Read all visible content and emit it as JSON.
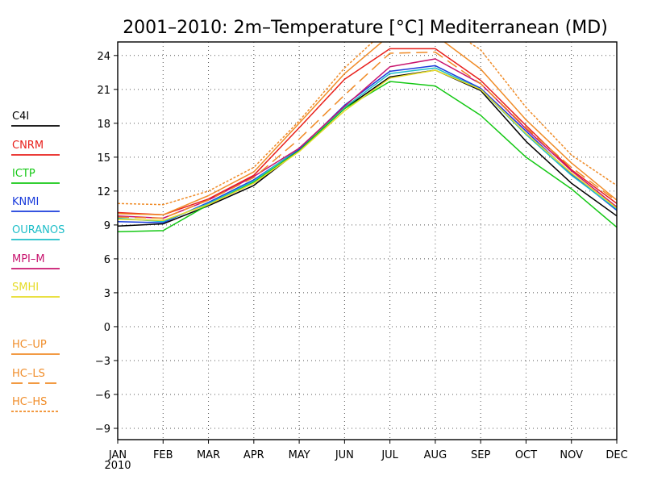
{
  "chart_data": {
    "type": "line",
    "title": "2001–2010: 2m–Temperature [°C] Mediterranean (MD)",
    "xlabel": "",
    "ylabel": "",
    "categories": [
      "JAN",
      "FEB",
      "MAR",
      "APR",
      "MAY",
      "JUN",
      "JUL",
      "AUG",
      "SEP",
      "OCT",
      "NOV",
      "DEC"
    ],
    "x_sublabel": "2010",
    "yticks": [
      24,
      21,
      18,
      15,
      12,
      9,
      6,
      3,
      0,
      -3,
      -6,
      -9
    ],
    "ylim": [
      -10,
      25.2
    ],
    "grid": true,
    "legend_placement": "left",
    "series": [
      {
        "name": "C4I",
        "color": "#000000",
        "dash": "solid",
        "values": [
          8.9,
          9.1,
          10.7,
          12.5,
          15.6,
          19.3,
          22.1,
          22.7,
          20.9,
          16.4,
          12.7,
          9.8
        ]
      },
      {
        "name": "CNRM",
        "color": "#e8201c",
        "dash": "solid",
        "values": [
          10.1,
          9.9,
          11.3,
          13.4,
          17.6,
          21.9,
          24.6,
          24.6,
          21.8,
          17.8,
          13.9,
          10.9
        ]
      },
      {
        "name": "ICTP",
        "color": "#14c814",
        "dash": "solid",
        "values": [
          8.4,
          8.5,
          10.8,
          12.8,
          15.6,
          19.3,
          21.7,
          21.3,
          18.7,
          15.0,
          12.2,
          8.8
        ]
      },
      {
        "name": "KNMI",
        "color": "#1a3cdc",
        "dash": "solid",
        "values": [
          9.3,
          9.2,
          11.0,
          13.0,
          15.7,
          19.6,
          22.6,
          23.1,
          21.1,
          17.3,
          13.5,
          10.3
        ]
      },
      {
        "name": "OURANOS",
        "color": "#1ebec8",
        "dash": "solid",
        "values": [
          9.6,
          9.3,
          10.9,
          12.9,
          15.8,
          19.4,
          22.4,
          22.9,
          21.0,
          17.0,
          13.4,
          10.4
        ]
      },
      {
        "name": "MPI–M",
        "color": "#c8146e",
        "dash": "solid",
        "values": [
          9.8,
          9.6,
          11.2,
          13.3,
          15.8,
          19.5,
          23.0,
          23.7,
          21.5,
          17.5,
          13.8,
          10.6
        ]
      },
      {
        "name": "SMHI",
        "color": "#e6dc28",
        "dash": "solid",
        "values": [
          9.5,
          9.4,
          10.8,
          12.7,
          15.5,
          19.1,
          22.0,
          22.7,
          21.0,
          17.1,
          13.6,
          10.5
        ]
      },
      {
        "name": "HC–UP",
        "color": "#f08c28",
        "dash": "solid",
        "values": [
          10.0,
          9.9,
          11.6,
          13.7,
          18.0,
          22.4,
          25.8,
          25.8,
          22.8,
          18.3,
          14.5,
          11.2
        ]
      },
      {
        "name": "HC–LS",
        "color": "#f08c28",
        "dash": "long",
        "values": [
          9.7,
          9.6,
          11.2,
          13.2,
          16.6,
          20.5,
          24.2,
          24.3,
          21.5,
          17.6,
          14.1,
          11.1
        ]
      },
      {
        "name": "HC–HS",
        "color": "#f08c28",
        "dash": "short",
        "values": [
          10.9,
          10.8,
          12.0,
          14.1,
          18.2,
          22.9,
          26.6,
          27.1,
          24.5,
          19.4,
          15.2,
          12.5
        ]
      }
    ]
  }
}
